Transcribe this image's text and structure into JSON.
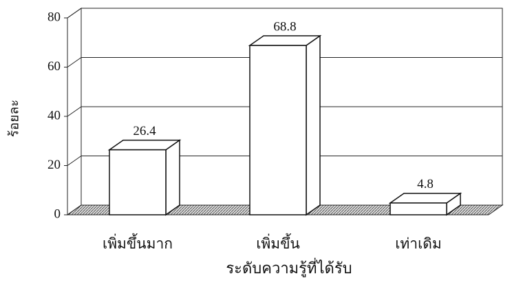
{
  "chart_data": {
    "type": "bar3d",
    "categories": [
      "เพิ่มขึ้นมาก",
      "เพิ่มขึ้น",
      "เท่าเดิม"
    ],
    "values": [
      26.4,
      68.8,
      4.8
    ],
    "color": "#ffffff",
    "ylim": [
      0,
      80
    ],
    "yticks": [
      0,
      20,
      40,
      60,
      80
    ],
    "grid": true,
    "x_label": "ระดับความรู้ที่ได้รับ",
    "y_label": "ร้อยละ"
  }
}
